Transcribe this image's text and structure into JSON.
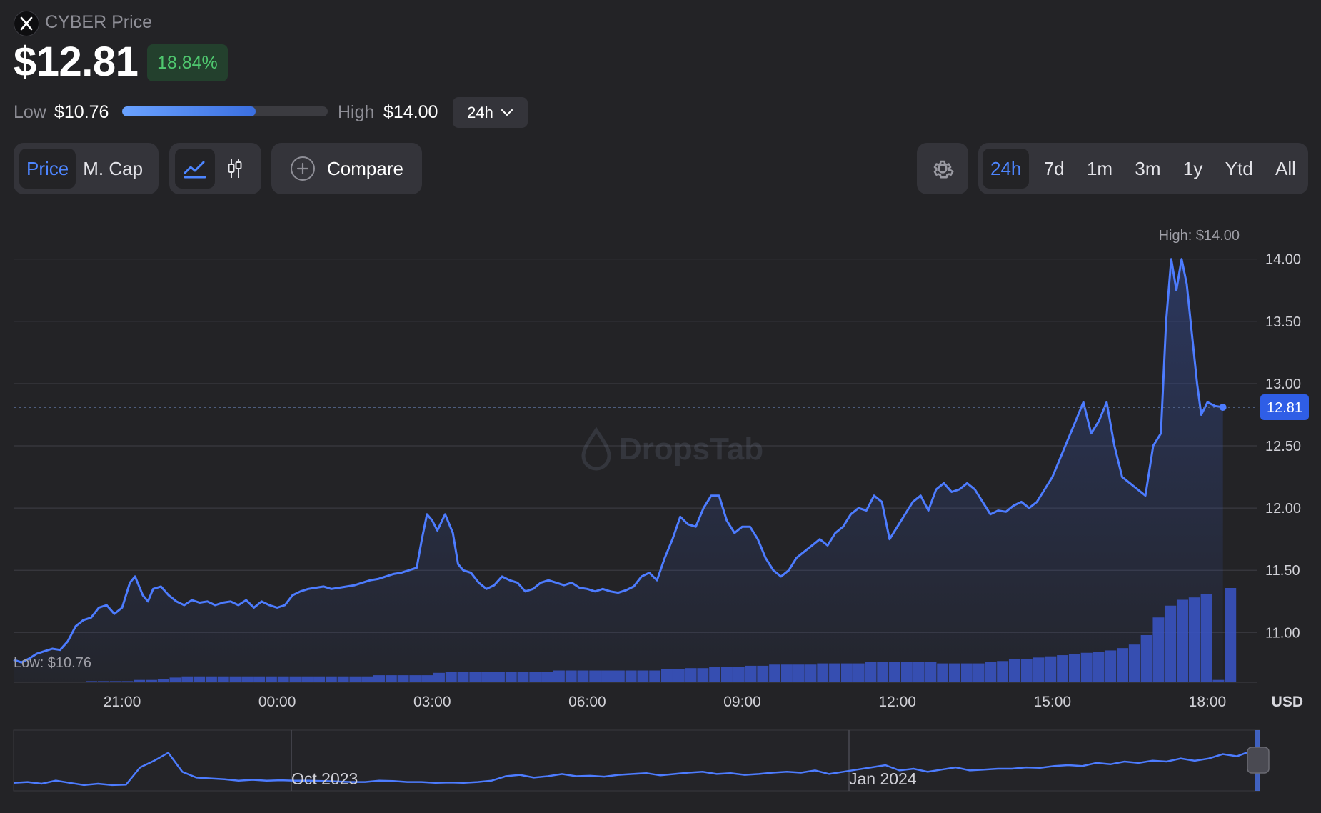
{
  "header": {
    "title": "CYBER Price",
    "price": "$12.81",
    "change": "18.84%",
    "colors": {
      "up": "#4fc86f",
      "accent": "#4d85ff"
    }
  },
  "range_bar": {
    "low_label": "Low",
    "low_value": "$10.76",
    "high_label": "High",
    "high_value": "$14.00",
    "position_fraction": 0.65,
    "period": "24h"
  },
  "controls": {
    "metric_tabs": [
      {
        "label": "Price",
        "active": true
      },
      {
        "label": "M. Cap",
        "active": false
      }
    ],
    "chart_types": [
      {
        "icon": "line-chart-icon",
        "active": true
      },
      {
        "icon": "candlestick-icon",
        "active": false
      }
    ],
    "compare_label": "Compare",
    "settings_icon": "gear-icon",
    "time_ranges": [
      {
        "label": "24h",
        "active": true
      },
      {
        "label": "7d",
        "active": false
      },
      {
        "label": "1m",
        "active": false
      },
      {
        "label": "3m",
        "active": false
      },
      {
        "label": "1y",
        "active": false
      },
      {
        "label": "Ytd",
        "active": false
      },
      {
        "label": "All",
        "active": false
      }
    ]
  },
  "chart_data": [
    {
      "type": "line",
      "x_start_hour": 18.9,
      "x_end_hour": 42.65,
      "x_ticks": [
        {
          "hour": 21,
          "label": "21:00"
        },
        {
          "hour": 24,
          "label": "00:00"
        },
        {
          "hour": 27,
          "label": "03:00"
        },
        {
          "hour": 30,
          "label": "06:00"
        },
        {
          "hour": 33,
          "label": "09:00"
        },
        {
          "hour": 36,
          "label": "12:00"
        },
        {
          "hour": 39,
          "label": "15:00"
        },
        {
          "hour": 42,
          "label": "18:00"
        }
      ],
      "y_ticks": [
        11.0,
        11.5,
        12.0,
        12.5,
        13.0,
        13.5,
        14.0
      ],
      "ylim": [
        10.6,
        14.05
      ],
      "unit": "USD",
      "current_price": "12.81",
      "current_value": 12.81,
      "high_annotation": "High: $14.00",
      "low_annotation": "Low: $10.76",
      "watermark": "DropsTab",
      "series": [
        {
          "points": [
            [
              18.9,
              10.78
            ],
            [
              19.05,
              10.76
            ],
            [
              19.2,
              10.79
            ],
            [
              19.35,
              10.83
            ],
            [
              19.5,
              10.85
            ],
            [
              19.65,
              10.87
            ],
            [
              19.8,
              10.86
            ],
            [
              19.95,
              10.93
            ],
            [
              20.1,
              11.05
            ],
            [
              20.25,
              11.1
            ],
            [
              20.4,
              11.12
            ],
            [
              20.55,
              11.2
            ],
            [
              20.7,
              11.22
            ],
            [
              20.85,
              11.15
            ],
            [
              21.0,
              11.2
            ],
            [
              21.15,
              11.4
            ],
            [
              21.25,
              11.45
            ],
            [
              21.4,
              11.3
            ],
            [
              21.5,
              11.25
            ],
            [
              21.6,
              11.35
            ],
            [
              21.75,
              11.37
            ],
            [
              21.9,
              11.3
            ],
            [
              22.05,
              11.25
            ],
            [
              22.2,
              11.22
            ],
            [
              22.35,
              11.26
            ],
            [
              22.5,
              11.24
            ],
            [
              22.65,
              11.25
            ],
            [
              22.8,
              11.22
            ],
            [
              22.95,
              11.24
            ],
            [
              23.1,
              11.25
            ],
            [
              23.25,
              11.22
            ],
            [
              23.4,
              11.26
            ],
            [
              23.55,
              11.2
            ],
            [
              23.7,
              11.25
            ],
            [
              23.85,
              11.22
            ],
            [
              24.0,
              11.2
            ],
            [
              24.15,
              11.22
            ],
            [
              24.3,
              11.3
            ],
            [
              24.45,
              11.33
            ],
            [
              24.6,
              11.35
            ],
            [
              24.75,
              11.36
            ],
            [
              24.9,
              11.37
            ],
            [
              25.05,
              11.35
            ],
            [
              25.2,
              11.36
            ],
            [
              25.35,
              11.37
            ],
            [
              25.5,
              11.38
            ],
            [
              25.65,
              11.4
            ],
            [
              25.8,
              11.42
            ],
            [
              25.95,
              11.43
            ],
            [
              26.1,
              11.45
            ],
            [
              26.25,
              11.47
            ],
            [
              26.4,
              11.48
            ],
            [
              26.55,
              11.5
            ],
            [
              26.7,
              11.52
            ],
            [
              26.8,
              11.75
            ],
            [
              26.9,
              11.95
            ],
            [
              27.0,
              11.9
            ],
            [
              27.1,
              11.82
            ],
            [
              27.25,
              11.95
            ],
            [
              27.4,
              11.8
            ],
            [
              27.5,
              11.55
            ],
            [
              27.6,
              11.5
            ],
            [
              27.75,
              11.48
            ],
            [
              27.9,
              11.4
            ],
            [
              28.05,
              11.35
            ],
            [
              28.2,
              11.38
            ],
            [
              28.35,
              11.45
            ],
            [
              28.5,
              11.42
            ],
            [
              28.65,
              11.4
            ],
            [
              28.8,
              11.33
            ],
            [
              28.95,
              11.35
            ],
            [
              29.1,
              11.4
            ],
            [
              29.25,
              11.42
            ],
            [
              29.4,
              11.4
            ],
            [
              29.55,
              11.38
            ],
            [
              29.7,
              11.4
            ],
            [
              29.85,
              11.36
            ],
            [
              30.0,
              11.35
            ],
            [
              30.15,
              11.33
            ],
            [
              30.3,
              11.35
            ],
            [
              30.45,
              11.33
            ],
            [
              30.6,
              11.32
            ],
            [
              30.75,
              11.34
            ],
            [
              30.9,
              11.37
            ],
            [
              31.05,
              11.45
            ],
            [
              31.2,
              11.48
            ],
            [
              31.35,
              11.42
            ],
            [
              31.5,
              11.6
            ],
            [
              31.65,
              11.75
            ],
            [
              31.8,
              11.93
            ],
            [
              31.95,
              11.87
            ],
            [
              32.1,
              11.85
            ],
            [
              32.25,
              12.0
            ],
            [
              32.4,
              12.1
            ],
            [
              32.55,
              12.1
            ],
            [
              32.7,
              11.9
            ],
            [
              32.85,
              11.8
            ],
            [
              33.0,
              11.85
            ],
            [
              33.15,
              11.85
            ],
            [
              33.3,
              11.75
            ],
            [
              33.45,
              11.6
            ],
            [
              33.6,
              11.5
            ],
            [
              33.75,
              11.45
            ],
            [
              33.9,
              11.5
            ],
            [
              34.05,
              11.6
            ],
            [
              34.2,
              11.65
            ],
            [
              34.35,
              11.7
            ],
            [
              34.5,
              11.75
            ],
            [
              34.65,
              11.7
            ],
            [
              34.8,
              11.8
            ],
            [
              34.95,
              11.85
            ],
            [
              35.1,
              11.95
            ],
            [
              35.25,
              12.0
            ],
            [
              35.4,
              11.98
            ],
            [
              35.55,
              12.1
            ],
            [
              35.7,
              12.05
            ],
            [
              35.85,
              11.75
            ],
            [
              36.0,
              11.85
            ],
            [
              36.15,
              11.95
            ],
            [
              36.3,
              12.05
            ],
            [
              36.45,
              12.1
            ],
            [
              36.6,
              11.98
            ],
            [
              36.75,
              12.15
            ],
            [
              36.9,
              12.2
            ],
            [
              37.05,
              12.13
            ],
            [
              37.2,
              12.15
            ],
            [
              37.35,
              12.2
            ],
            [
              37.5,
              12.15
            ],
            [
              37.65,
              12.05
            ],
            [
              37.8,
              11.95
            ],
            [
              37.95,
              11.98
            ],
            [
              38.1,
              11.97
            ],
            [
              38.25,
              12.02
            ],
            [
              38.4,
              12.05
            ],
            [
              38.55,
              12.0
            ],
            [
              38.7,
              12.05
            ],
            [
              38.85,
              12.15
            ],
            [
              39.0,
              12.25
            ],
            [
              39.15,
              12.4
            ],
            [
              39.3,
              12.55
            ],
            [
              39.45,
              12.7
            ],
            [
              39.6,
              12.85
            ],
            [
              39.75,
              12.6
            ],
            [
              39.9,
              12.7
            ],
            [
              40.05,
              12.85
            ],
            [
              40.2,
              12.5
            ],
            [
              40.35,
              12.25
            ],
            [
              40.5,
              12.2
            ],
            [
              40.65,
              12.15
            ],
            [
              40.8,
              12.1
            ],
            [
              40.95,
              12.5
            ],
            [
              41.1,
              12.6
            ],
            [
              41.2,
              13.5
            ],
            [
              41.3,
              14.0
            ],
            [
              41.4,
              13.75
            ],
            [
              41.5,
              14.0
            ],
            [
              41.6,
              13.8
            ],
            [
              41.7,
              13.4
            ],
            [
              41.8,
              13.0
            ],
            [
              41.88,
              12.75
            ],
            [
              42.0,
              12.85
            ],
            [
              42.15,
              12.82
            ],
            [
              42.3,
              12.81
            ]
          ]
        },
        {
          "name": "Volume",
          "type": "bar",
          "relative_values": [
            0.01,
            0.01,
            0.01,
            0.01,
            0.02,
            0.02,
            0.03,
            0.04,
            0.05,
            0.05,
            0.05,
            0.05,
            0.05,
            0.05,
            0.05,
            0.05,
            0.05,
            0.05,
            0.05,
            0.05,
            0.05,
            0.05,
            0.05,
            0.05,
            0.06,
            0.06,
            0.06,
            0.06,
            0.06,
            0.08,
            0.09,
            0.09,
            0.09,
            0.09,
            0.09,
            0.09,
            0.09,
            0.09,
            0.09,
            0.1,
            0.1,
            0.1,
            0.1,
            0.1,
            0.1,
            0.1,
            0.1,
            0.1,
            0.11,
            0.11,
            0.12,
            0.12,
            0.13,
            0.13,
            0.13,
            0.14,
            0.14,
            0.15,
            0.15,
            0.15,
            0.15,
            0.16,
            0.16,
            0.16,
            0.16,
            0.17,
            0.17,
            0.17,
            0.17,
            0.17,
            0.17,
            0.16,
            0.16,
            0.16,
            0.16,
            0.17,
            0.18,
            0.2,
            0.2,
            0.21,
            0.22,
            0.23,
            0.24,
            0.25,
            0.26,
            0.27,
            0.29,
            0.32,
            0.4,
            0.55,
            0.65,
            0.7,
            0.72,
            0.75,
            0.02,
            0.8
          ]
        }
      ]
    },
    {
      "type": "line",
      "name": "Navigator",
      "x_labels": [
        "Oct 2023",
        "Jan 2024"
      ],
      "relative_values": [
        0.1,
        0.12,
        0.08,
        0.15,
        0.1,
        0.05,
        0.08,
        0.05,
        0.06,
        0.45,
        0.6,
        0.78,
        0.35,
        0.22,
        0.2,
        0.18,
        0.15,
        0.17,
        0.15,
        0.16,
        0.15,
        0.15,
        0.14,
        0.13,
        0.12,
        0.12,
        0.15,
        0.14,
        0.12,
        0.12,
        0.1,
        0.11,
        0.1,
        0.12,
        0.15,
        0.25,
        0.28,
        0.22,
        0.25,
        0.3,
        0.25,
        0.26,
        0.24,
        0.28,
        0.3,
        0.32,
        0.27,
        0.3,
        0.33,
        0.35,
        0.3,
        0.32,
        0.28,
        0.3,
        0.33,
        0.35,
        0.33,
        0.38,
        0.3,
        0.35,
        0.4,
        0.45,
        0.5,
        0.38,
        0.42,
        0.35,
        0.4,
        0.45,
        0.38,
        0.4,
        0.42,
        0.42,
        0.45,
        0.44,
        0.48,
        0.5,
        0.48,
        0.55,
        0.52,
        0.58,
        0.55,
        0.6,
        0.58,
        0.65,
        0.6,
        0.65,
        0.75,
        0.7,
        0.82
      ]
    }
  ]
}
